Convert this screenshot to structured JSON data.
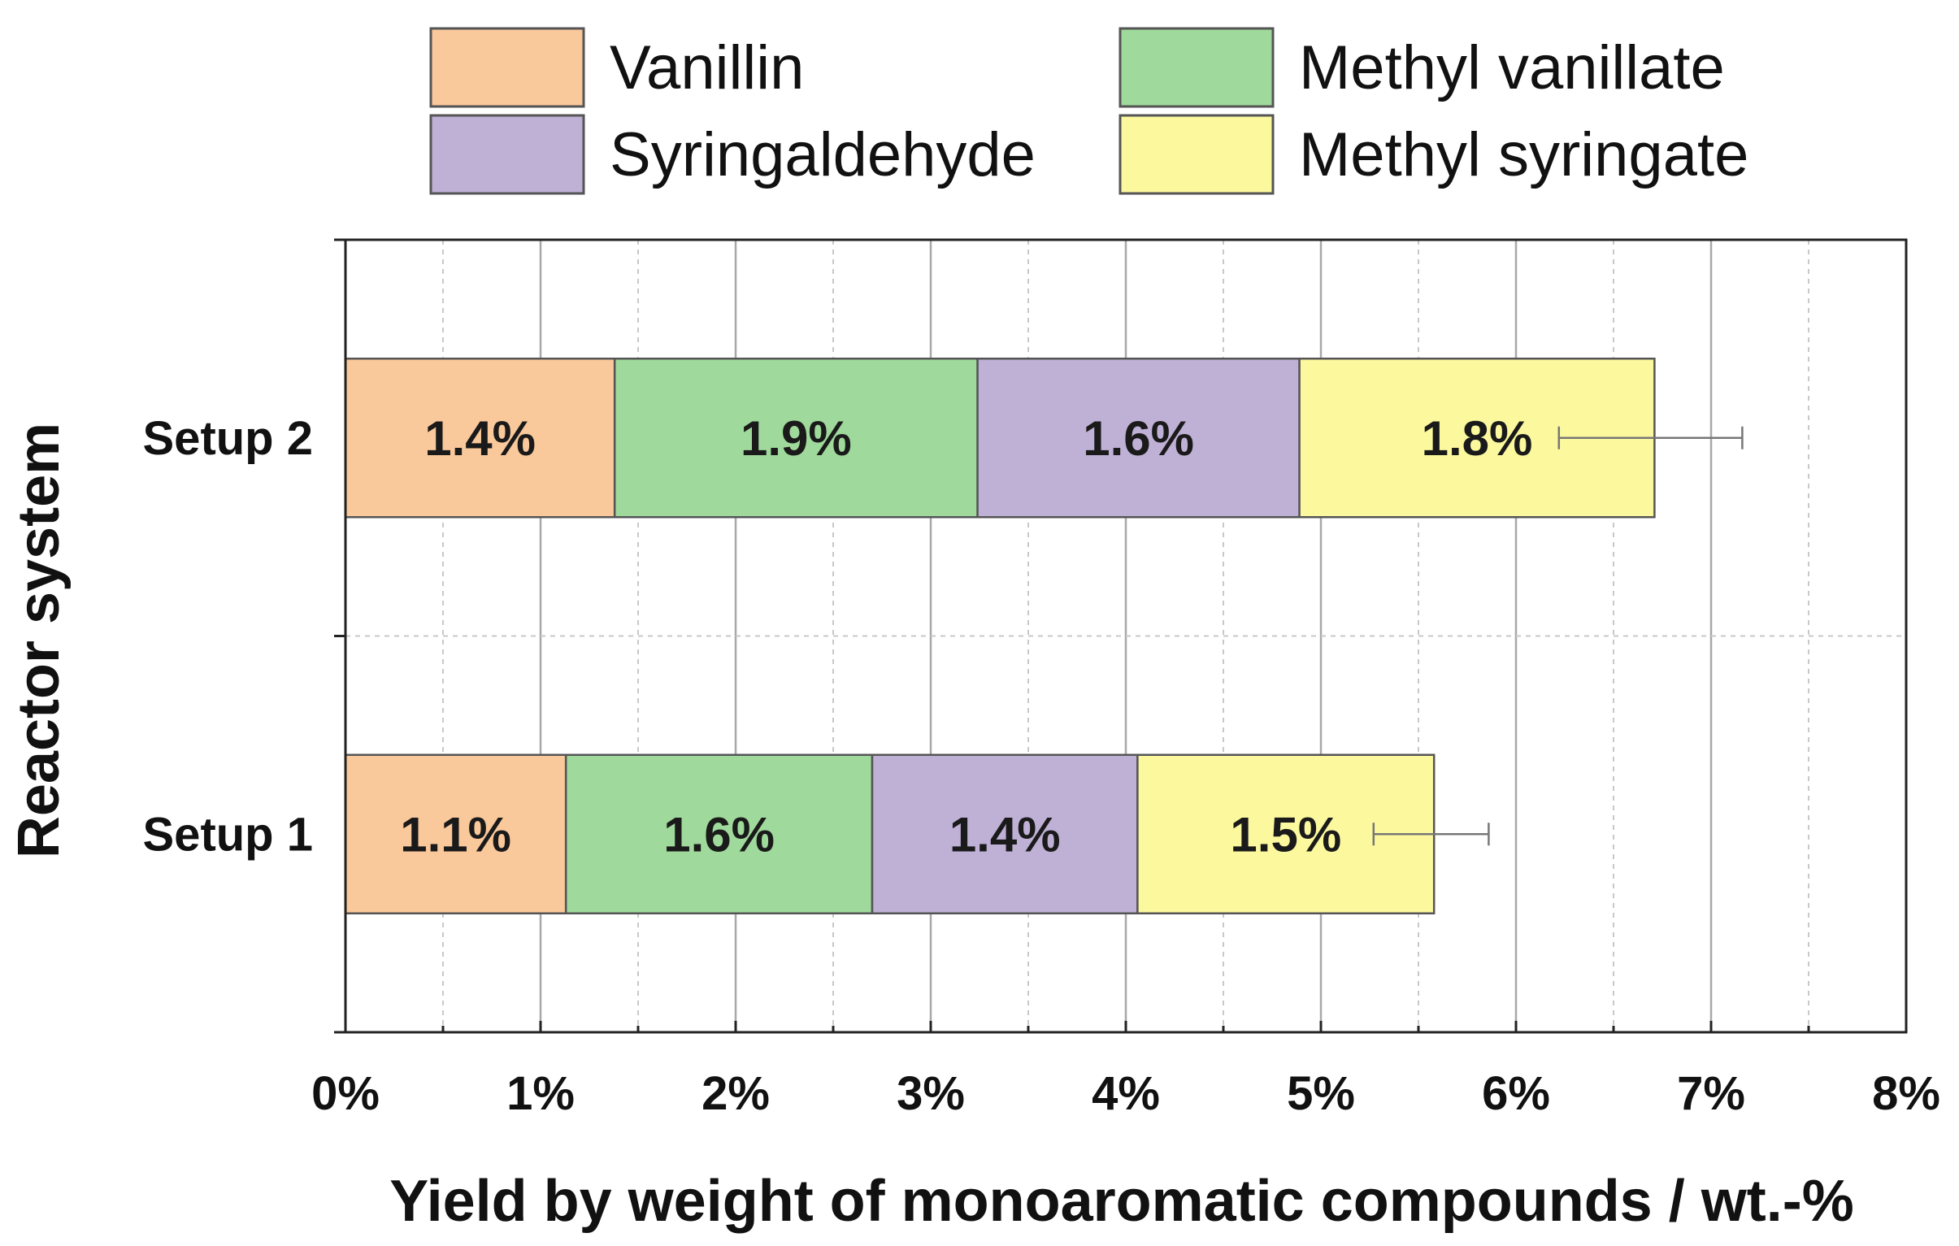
{
  "chart_data": {
    "type": "bar",
    "orientation": "horizontal",
    "stacked": true,
    "title": "",
    "xlabel": "Yield by weight of monoaromatic compounds / wt.-%",
    "ylabel": "Reactor system",
    "xlim": [
      0,
      8
    ],
    "x_ticks": [
      0,
      1,
      2,
      3,
      4,
      5,
      6,
      7,
      8
    ],
    "x_tick_labels": [
      "0%",
      "1%",
      "2%",
      "3%",
      "4%",
      "5%",
      "6%",
      "7%",
      "8%"
    ],
    "grid": true,
    "legend_position": "top",
    "categories": [
      "Setup 2",
      "Setup 1"
    ],
    "series": [
      {
        "name": "Vanillin",
        "color": "#f9c89b",
        "values": [
          1.38,
          1.13
        ],
        "labels": [
          "1.4%",
          "1.1%"
        ]
      },
      {
        "name": "Methyl vanillate",
        "color": "#9fd99b",
        "values": [
          1.86,
          1.57
        ],
        "labels": [
          "1.9%",
          "1.6%"
        ]
      },
      {
        "name": "Syringaldehyde",
        "color": "#bfb0d6",
        "values": [
          1.65,
          1.36
        ],
        "labels": [
          "1.6%",
          "1.4%"
        ]
      },
      {
        "name": "Methyl syringate",
        "color": "#fbf89e",
        "values": [
          1.82,
          1.52
        ],
        "labels": [
          "1.8%",
          "1.5%"
        ]
      }
    ],
    "legend_order": [
      "Vanillin",
      "Methyl vanillate",
      "Syringaldehyde",
      "Methyl syringate"
    ],
    "error_bars": [
      {
        "category": "Setup 2",
        "low": 6.22,
        "high": 7.16
      },
      {
        "category": "Setup 1",
        "low": 5.27,
        "high": 5.86
      }
    ]
  }
}
